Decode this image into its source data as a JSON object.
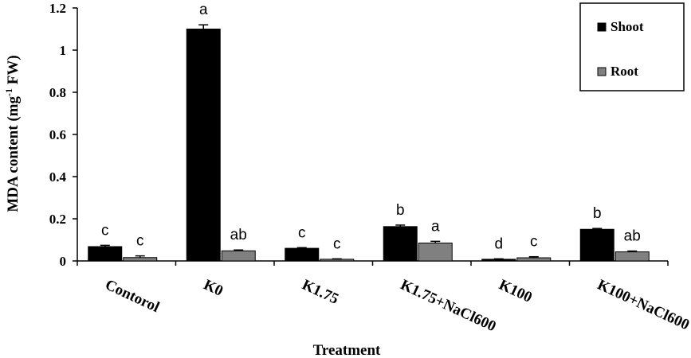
{
  "chart_data": {
    "type": "bar",
    "categories": [
      "Contorol",
      "K0",
      "K1.75",
      "K1.75+NaCl600",
      "K100",
      "K100+NaCl600"
    ],
    "series": [
      {
        "name": "Shoot",
        "color": "#000000",
        "values": [
          0.068,
          1.1,
          0.06,
          0.163,
          0.008,
          0.15
        ],
        "errors": [
          0.006,
          0.02,
          0.003,
          0.007,
          0.002,
          0.004
        ],
        "letters": [
          "c",
          "a",
          "c",
          "b",
          "d",
          "b"
        ]
      },
      {
        "name": "Root",
        "color": "#808080",
        "values": [
          0.016,
          0.048,
          0.008,
          0.085,
          0.015,
          0.043
        ],
        "errors": [
          0.008,
          0.004,
          0.002,
          0.008,
          0.005,
          0.004
        ],
        "letters": [
          "c",
          "ab",
          "c",
          "a",
          "c",
          "ab"
        ]
      }
    ],
    "xlabel": "Treatment",
    "ylabel": "MDA content (mg-1 FW)",
    "ylabel_parts": {
      "before": "MDA content (mg",
      "sup": "-1",
      "after": " FW)"
    },
    "ylim": [
      0,
      1.2
    ],
    "yticks": [
      "0",
      "0.2",
      "0.4",
      "0.6",
      "0.8",
      "1",
      "1.2"
    ],
    "grid": false,
    "legend": "top-right"
  }
}
